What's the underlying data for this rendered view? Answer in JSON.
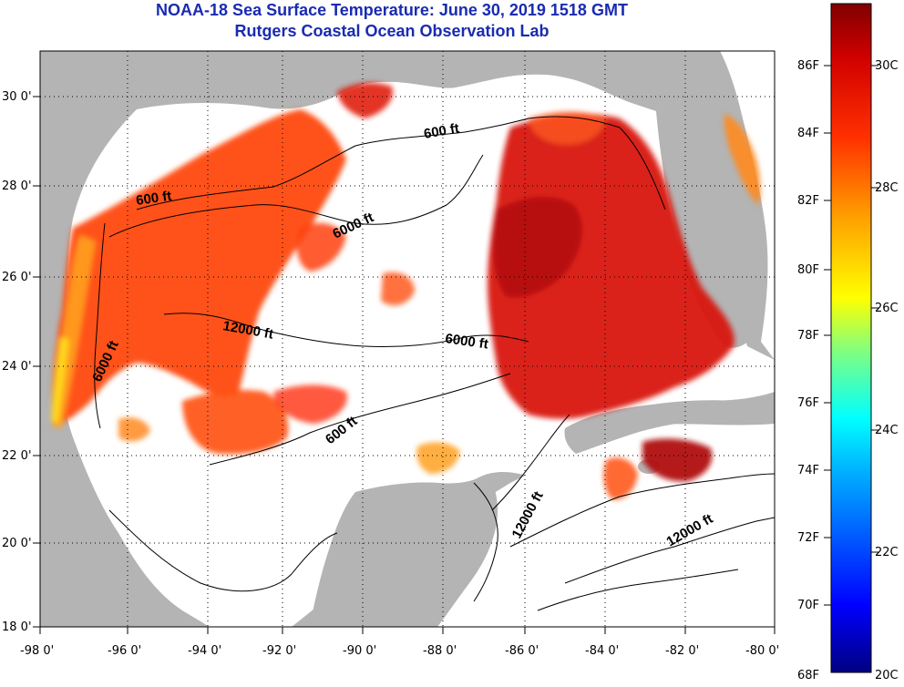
{
  "header": {
    "title": "NOAA-18 Sea Surface Temperature:  June 30, 2019 1518 GMT",
    "subtitle": "Rutgers Coastal Ocean Observation Lab"
  },
  "map": {
    "lon_range": [
      -98,
      -80
    ],
    "lat_range": [
      18,
      31
    ],
    "x_ticks": [
      "-98 0'",
      "-96 0'",
      "-94 0'",
      "-92 0'",
      "-90 0'",
      "-88 0'",
      "-86 0'",
      "-84 0'",
      "-82 0'",
      "-80 0'"
    ],
    "y_ticks": [
      "30 0'",
      "28 0'",
      "26 0'",
      "24 0'",
      "22 0'",
      "20 0'",
      "18 0'"
    ],
    "contour_labels": [
      "600 ft",
      "600 ft",
      "6000 ft",
      "12000 ft",
      "6000 ft",
      "6000 ft",
      "600 ft",
      "12000 ft",
      "12000 ft"
    ],
    "colors": {
      "land": "#b4b4b4",
      "cloud": "#ffffff"
    }
  },
  "colorbar": {
    "fahrenheit_labels": [
      "86F",
      "84F",
      "82F",
      "80F",
      "78F",
      "76F",
      "74F",
      "72F",
      "70F",
      "68F"
    ],
    "celsius_labels": [
      "30C",
      "28C",
      "26C",
      "24C",
      "22C",
      "20C"
    ],
    "range_c": [
      20,
      31.5
    ],
    "colors": [
      "#000080",
      "#0000ff",
      "#00b0ff",
      "#00ffff",
      "#80ff80",
      "#ffff00",
      "#ffa000",
      "#ff3000",
      "#d00000",
      "#800000"
    ]
  }
}
